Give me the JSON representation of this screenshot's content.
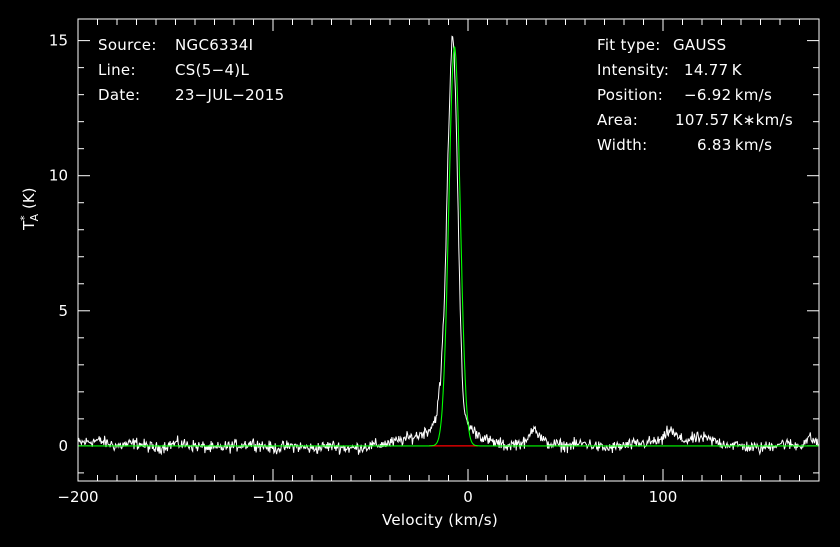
{
  "info_left": [
    {
      "key": "Source:",
      "value": "NGC6334I"
    },
    {
      "key": "Line:",
      "value": "CS(5−4)L"
    },
    {
      "key": "Date:",
      "value": "23−JUL−2015"
    }
  ],
  "info_right": [
    {
      "key": "Fit type:",
      "value": "GAUSS"
    },
    {
      "key": "Intensity:",
      "value": "14.77 K"
    },
    {
      "key": "Position:",
      "value": "−6.92 km/s"
    },
    {
      "key": "Area:",
      "value": "107.57 K∗km/s"
    },
    {
      "key": "Width:",
      "value": "6.83 km/s"
    }
  ],
  "chart_data": {
    "type": "line",
    "xlabel": "Velocity (km/s)",
    "ylabel_main": "T",
    "ylabel_sup": "*",
    "ylabel_sub": "A",
    "ylabel_unit": "(K)",
    "xlim": [
      -200,
      180
    ],
    "ylim": [
      -1.3,
      15.8
    ],
    "x_ticks": [
      -200,
      -100,
      0,
      100
    ],
    "x_tick_labels": [
      "−200",
      "−100",
      "0",
      "100"
    ],
    "y_ticks": [
      0,
      5,
      10,
      15
    ],
    "y_tick_labels": [
      "0",
      "5",
      "10",
      "15"
    ],
    "grid": false,
    "series": [
      {
        "role": "observed spectrum",
        "color": "#ffffff",
        "x": [
          -200,
          -190,
          -180,
          -170,
          -160,
          -150,
          -140,
          -130,
          -120,
          -110,
          -100,
          -90,
          -80,
          -70,
          -60,
          -50,
          -40,
          -35,
          -30,
          -25,
          -20,
          -18,
          -16,
          -14,
          -12,
          -11,
          -10,
          -9,
          -8,
          -7,
          -6,
          -5,
          -4,
          -3,
          -2,
          -1,
          0,
          2,
          4,
          6,
          8,
          10,
          15,
          20,
          25,
          30,
          32,
          34,
          36,
          40,
          50,
          60,
          70,
          80,
          90,
          100,
          102,
          104,
          106,
          110,
          120,
          130,
          140,
          150,
          160,
          170,
          175,
          180
        ],
        "y": [
          0.1,
          0.2,
          0.0,
          0.1,
          -0.1,
          0.1,
          0.0,
          -0.1,
          0.0,
          0.1,
          -0.1,
          0.0,
          -0.1,
          0.0,
          -0.1,
          0.0,
          0.1,
          0.2,
          0.3,
          0.4,
          0.6,
          0.8,
          1.2,
          2.5,
          5.5,
          8.5,
          11.5,
          13.8,
          15.3,
          14.5,
          12.0,
          8.5,
          5.0,
          2.5,
          1.4,
          1.0,
          0.8,
          0.6,
          0.5,
          0.4,
          0.3,
          0.2,
          0.1,
          0.0,
          0.1,
          0.1,
          0.5,
          0.8,
          0.4,
          0.1,
          0.0,
          0.1,
          -0.1,
          0.0,
          0.1,
          0.2,
          0.5,
          0.6,
          0.4,
          0.2,
          0.3,
          0.1,
          0.0,
          -0.1,
          0.1,
          0.0,
          0.3,
          0.1
        ]
      },
      {
        "role": "gaussian fit",
        "color": "#00ff00",
        "center": -6.92,
        "amplitude": 14.77,
        "fwhm": 6.83
      },
      {
        "role": "baseline residual",
        "color": "#ff0000",
        "x": [
          -20,
          5
        ],
        "y": [
          0,
          0
        ]
      }
    ]
  }
}
